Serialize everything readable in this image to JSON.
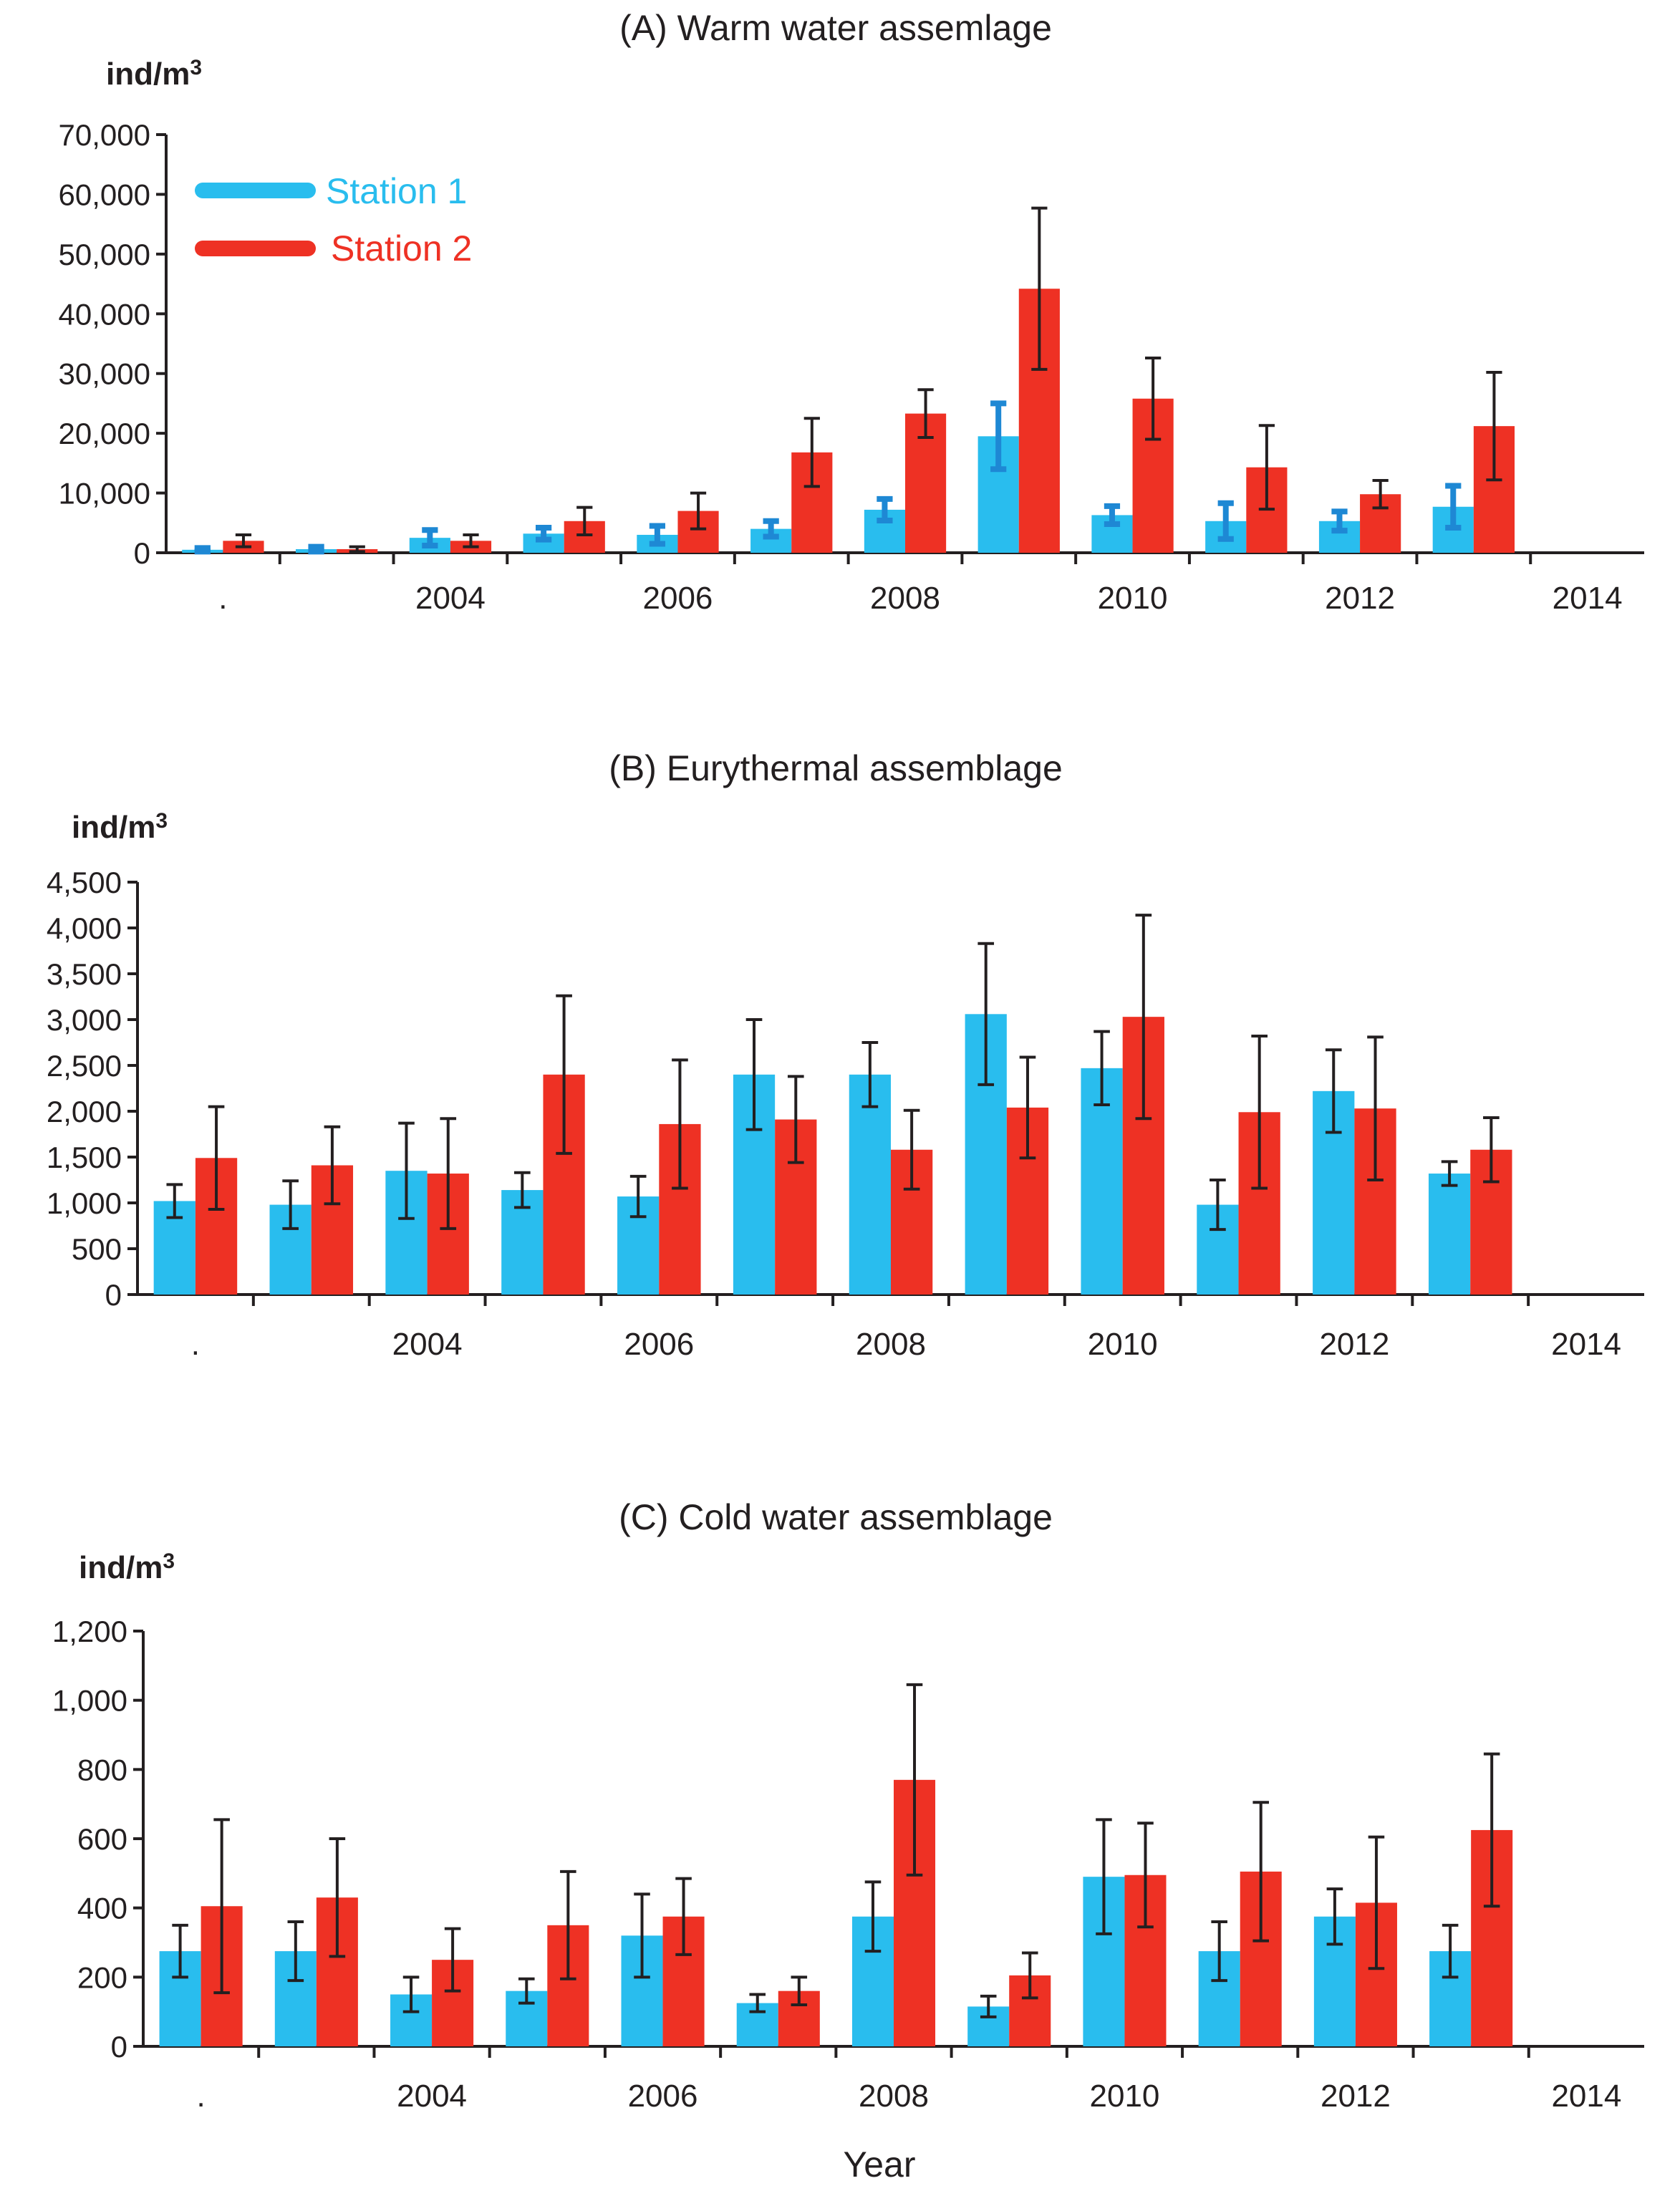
{
  "figure": {
    "xlabel": "Year",
    "colors": {
      "station1": "#29bdee",
      "station2": "#ee3124",
      "axis": "#231f20",
      "errorbar1A": "#1e88d4"
    }
  },
  "legend": [
    {
      "label": "Station 1",
      "color": "#29bdee"
    },
    {
      "label": "Station 2",
      "color": "#ee3124"
    }
  ],
  "chart_data": [
    {
      "type": "bar",
      "title": "(A) Warm water assemlage",
      "unit_base": "ind/m",
      "unit_sup": "3",
      "ylim": [
        0,
        70000
      ],
      "yticks": [
        0,
        10000,
        20000,
        30000,
        40000,
        50000,
        60000,
        70000
      ],
      "ytick_labels": [
        "0",
        "10,000",
        "20,000",
        "30,000",
        "40,000",
        "50,000",
        "60,000",
        "70,000"
      ],
      "categories": [
        ".",
        "",
        "2004",
        "",
        "2006",
        "",
        "2008",
        "",
        "2010",
        "",
        "2012",
        "",
        "2014"
      ],
      "tick_labels": [
        ".",
        "2004",
        "2006",
        "2008",
        "2010",
        "2012",
        "2014"
      ],
      "series": [
        {
          "name": "Station 1",
          "values": [
            500,
            600,
            2500,
            3200,
            3000,
            4000,
            7200,
            19500,
            6300,
            5300,
            5300,
            7700,
            0
          ],
          "errors": [
            300,
            400,
            1300,
            1000,
            1500,
            1300,
            1800,
            5500,
            1500,
            3000,
            1600,
            3500,
            0
          ]
        },
        {
          "name": "Station 2",
          "values": [
            2000,
            600,
            2000,
            5300,
            7000,
            16800,
            23300,
            44200,
            25800,
            14300,
            9800,
            21200,
            0
          ],
          "errors": [
            1000,
            400,
            1000,
            2300,
            3000,
            5700,
            4000,
            13500,
            6800,
            7000,
            2300,
            9000,
            0
          ]
        }
      ]
    },
    {
      "type": "bar",
      "title": "(B) Eurythermal assemblage",
      "unit_base": "ind/m",
      "unit_sup": "3",
      "ylim": [
        0,
        4500
      ],
      "yticks": [
        0,
        500,
        1000,
        1500,
        2000,
        2500,
        3000,
        3500,
        4000,
        4500
      ],
      "ytick_labels": [
        "0",
        "500",
        "1,000",
        "1,500",
        "2,000",
        "2,500",
        "3,000",
        "3,500",
        "4,000",
        "4,500"
      ],
      "categories": [
        ".",
        "",
        "2004",
        "",
        "2006",
        "",
        "2008",
        "",
        "2010",
        "",
        "2012",
        "",
        "2014"
      ],
      "tick_labels": [
        ".",
        "2004",
        "2006",
        "2008",
        "2010",
        "2012",
        "2014"
      ],
      "series": [
        {
          "name": "Station 1",
          "values": [
            1020,
            980,
            1350,
            1140,
            1070,
            2400,
            2400,
            3060,
            2470,
            980,
            2220,
            1320,
            0
          ],
          "errors": [
            180,
            260,
            520,
            190,
            220,
            600,
            350,
            770,
            400,
            270,
            450,
            130,
            0
          ]
        },
        {
          "name": "Station 2",
          "values": [
            1490,
            1410,
            1320,
            2400,
            1860,
            1910,
            1580,
            2040,
            3030,
            1990,
            2030,
            1580,
            0
          ],
          "errors": [
            560,
            420,
            600,
            860,
            700,
            470,
            430,
            550,
            1110,
            830,
            780,
            350,
            0
          ]
        }
      ]
    },
    {
      "type": "bar",
      "title": "(C) Cold water assemblage",
      "unit_base": "ind/m",
      "unit_sup": "3",
      "ylim": [
        0,
        1200
      ],
      "yticks": [
        0,
        200,
        400,
        600,
        800,
        1000,
        1200
      ],
      "ytick_labels": [
        "0",
        "200",
        "400",
        "600",
        "800",
        "1,000",
        "1,200"
      ],
      "categories": [
        ".",
        "",
        "2004",
        "",
        "2006",
        "",
        "2008",
        "",
        "2010",
        "",
        "2012",
        "",
        "2014"
      ],
      "tick_labels": [
        ".",
        "2004",
        "2006",
        "2008",
        "2010",
        "2012",
        "2014"
      ],
      "series": [
        {
          "name": "Station 1",
          "values": [
            275,
            275,
            150,
            160,
            320,
            125,
            375,
            115,
            490,
            275,
            375,
            275,
            0
          ],
          "errors": [
            75,
            85,
            50,
            35,
            120,
            25,
            100,
            30,
            165,
            85,
            80,
            75,
            0
          ]
        },
        {
          "name": "Station 2",
          "values": [
            405,
            430,
            250,
            350,
            375,
            160,
            770,
            205,
            495,
            505,
            415,
            625,
            0
          ],
          "errors": [
            250,
            170,
            90,
            155,
            110,
            40,
            275,
            65,
            150,
            200,
            190,
            220,
            0
          ]
        }
      ]
    }
  ]
}
